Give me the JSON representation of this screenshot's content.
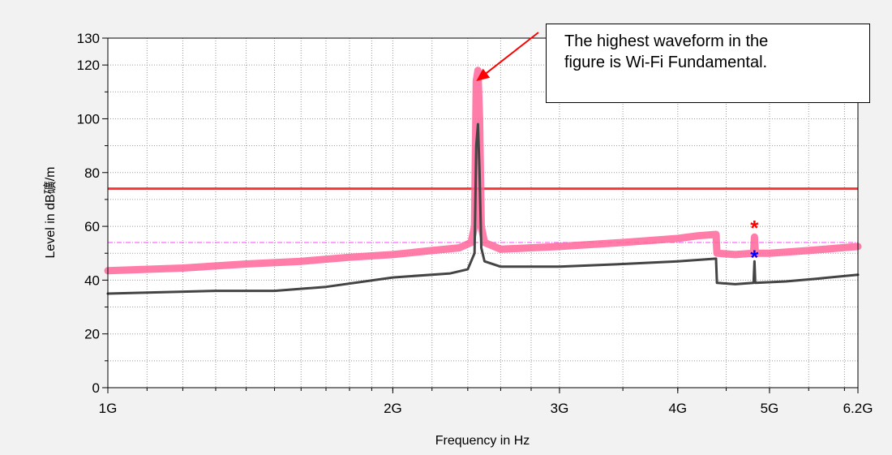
{
  "chart_data": {
    "type": "line",
    "title": "",
    "xlabel": "Frequency in Hz",
    "ylabel": "Level in dB礦/m",
    "x_scale": "log",
    "x_range_hz": [
      1000000000,
      6200000000
    ],
    "ylim": [
      0,
      130
    ],
    "x_ticks": [
      {
        "value": 1000000000,
        "label": "1G"
      },
      {
        "value": 2000000000,
        "label": "2G"
      },
      {
        "value": 3000000000,
        "label": "3G"
      },
      {
        "value": 4000000000,
        "label": "4G"
      },
      {
        "value": 5000000000,
        "label": "5G"
      },
      {
        "value": 6200000000,
        "label": "6.2G"
      }
    ],
    "y_ticks": [
      {
        "value": 0,
        "label": "0"
      },
      {
        "value": 20,
        "label": "20"
      },
      {
        "value": 40,
        "label": "40"
      },
      {
        "value": 60,
        "label": "60"
      },
      {
        "value": 80,
        "label": "80"
      },
      {
        "value": 100,
        "label": "100"
      },
      {
        "value": 120,
        "label": "120"
      },
      {
        "value": 130,
        "label": "130"
      }
    ],
    "grid": true,
    "series": [
      {
        "color": "#ff6699",
        "points": [
          [
            1000000000.0,
            43.5
          ],
          [
            1200000000.0,
            44.5
          ],
          [
            1400000000.0,
            46
          ],
          [
            1600000000.0,
            47
          ],
          [
            1800000000.0,
            48.5
          ],
          [
            2000000000.0,
            49.5
          ],
          [
            2200000000.0,
            51
          ],
          [
            2350000000.0,
            52
          ],
          [
            2420000000.0,
            54
          ],
          [
            2440000000.0,
            60
          ],
          [
            2450000000.0,
            114
          ],
          [
            2460000000.0,
            118
          ],
          [
            2470000000.0,
            100
          ],
          [
            2480000000.0,
            60
          ],
          [
            2500000000.0,
            54
          ],
          [
            2600000000.0,
            51.5
          ],
          [
            3000000000.0,
            52.5
          ],
          [
            3500000000.0,
            54
          ],
          [
            4000000000.0,
            55.5
          ],
          [
            4200000000.0,
            56.5
          ],
          [
            4390000000.0,
            57
          ],
          [
            4400000000.0,
            50
          ],
          [
            4600000000.0,
            49.5
          ],
          [
            4810000000.0,
            50
          ],
          [
            4820000000.0,
            56
          ],
          [
            4830000000.0,
            50
          ],
          [
            5000000000.0,
            50
          ],
          [
            5500000000.0,
            51
          ],
          [
            6200000000.0,
            52.5
          ]
        ]
      },
      {
        "color": "#444444",
        "points": [
          [
            1000000000.0,
            35
          ],
          [
            1300000000.0,
            36
          ],
          [
            1500000000.0,
            36
          ],
          [
            1700000000.0,
            37.5
          ],
          [
            2000000000.0,
            41
          ],
          [
            2300000000.0,
            42.5
          ],
          [
            2400000000.0,
            44
          ],
          [
            2440000000.0,
            50
          ],
          [
            2450000000.0,
            90
          ],
          [
            2460000000.0,
            98
          ],
          [
            2470000000.0,
            80
          ],
          [
            2480000000.0,
            52
          ],
          [
            2500000000.0,
            47
          ],
          [
            2600000000.0,
            45
          ],
          [
            3000000000.0,
            45
          ],
          [
            3500000000.0,
            46
          ],
          [
            4000000000.0,
            47
          ],
          [
            4390000000.0,
            48
          ],
          [
            4400000000.0,
            39
          ],
          [
            4600000000.0,
            38.5
          ],
          [
            4810000000.0,
            39
          ],
          [
            4820000000.0,
            47
          ],
          [
            4830000000.0,
            39
          ],
          [
            5200000000.0,
            39.5
          ],
          [
            5600000000.0,
            40.5
          ],
          [
            6200000000.0,
            42
          ]
        ]
      }
    ],
    "limit_lines": [
      {
        "value": 74,
        "color": "#ff3333",
        "style": "solid"
      },
      {
        "value": 54,
        "color": "#ff44ff",
        "style": "dash-dot"
      }
    ],
    "markers": [
      {
        "x": 4820000000,
        "y": 60,
        "color": "#ff0000",
        "symbol": "*"
      },
      {
        "x": 4820000000,
        "y": 49,
        "color": "#0000ff",
        "symbol": "*"
      }
    ],
    "annotation": {
      "line1": "The highest waveform in the",
      "line2": "figure is Wi-Fi Fundamental.",
      "arrow_target": {
        "x": 2450000000,
        "y": 114
      },
      "arrow_color": "#ff0000"
    }
  }
}
